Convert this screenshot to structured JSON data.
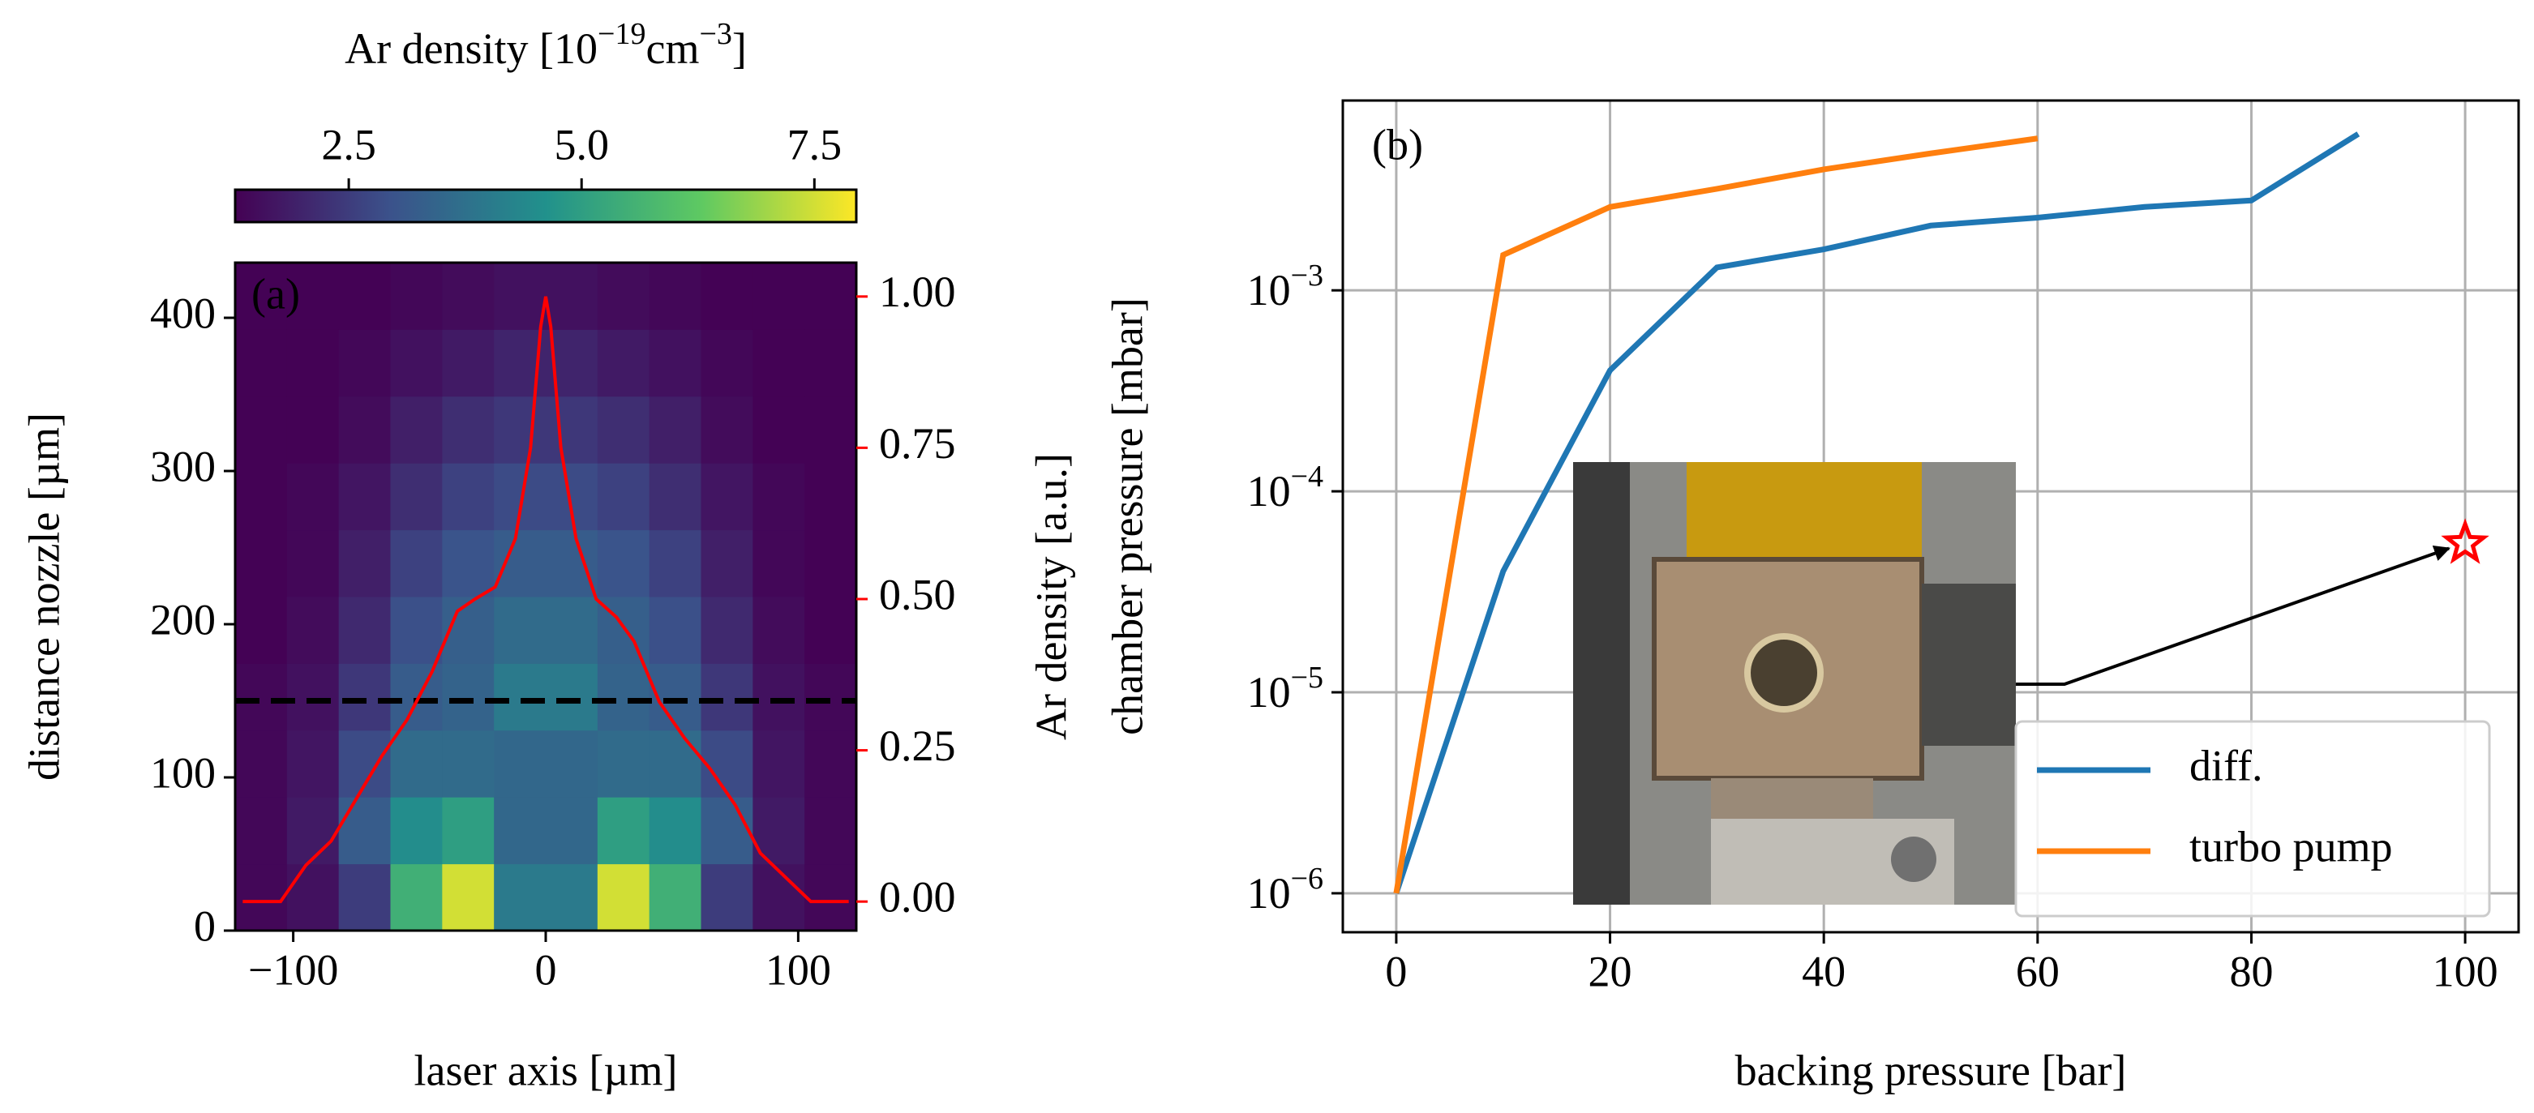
{
  "chart_data": [
    {
      "type": "heatmap",
      "label": "(a)",
      "xlabel": "laser axis [µm]",
      "ylabel": "distance nozzle [µm]",
      "y2label": "Ar density [a.u.]",
      "colorbar_label": "Ar density [10−19cm−3]",
      "colormap": "viridis",
      "clim": [
        1.28,
        7.95
      ],
      "cticks": [
        2.5,
        {
          "value": 5.0,
          "label": "5.0"
        },
        7.5
      ],
      "xlim": [
        -123,
        123
      ],
      "ylim": [
        0,
        436
      ],
      "y2lim": [
        -0.048,
        1.056
      ],
      "xticks": [
        {
          "value": -100,
          "label": "−100"
        },
        0,
        100
      ],
      "yticks": [
        0,
        100,
        200,
        300,
        400
      ],
      "y2ticks": [
        {
          "value": 0,
          "label": "0.00"
        },
        {
          "value": 0.25,
          "label": "0.25"
        },
        {
          "value": 0.5,
          "label": "0.50"
        },
        {
          "value": 0.75,
          "label": "0.75"
        },
        {
          "value": 1,
          "label": "1.00"
        }
      ],
      "x": [
        -112.75,
        -92.25,
        -71.75,
        -51.25,
        -30.75,
        -10.25,
        10.25,
        30.75,
        51.25,
        71.75,
        92.25,
        112.75
      ],
      "y": [
        21.8,
        65.4,
        109,
        152.6,
        196.2,
        239.8,
        283.4,
        327,
        370.6,
        414.2
      ],
      "z": [
        [
          1.4,
          1.6,
          2.5,
          5.5,
          7.5,
          4.0,
          4.0,
          7.5,
          5.5,
          2.5,
          1.6,
          1.4
        ],
        [
          1.4,
          1.8,
          3.2,
          4.5,
          5.0,
          3.5,
          3.5,
          5.0,
          4.5,
          3.2,
          1.8,
          1.4
        ],
        [
          1.4,
          1.7,
          2.8,
          3.6,
          3.6,
          3.5,
          3.5,
          3.6,
          3.6,
          2.8,
          1.7,
          1.4
        ],
        [
          1.4,
          1.6,
          2.4,
          3.2,
          3.4,
          4.0,
          4.0,
          3.4,
          3.2,
          2.4,
          1.6,
          1.4
        ],
        [
          1.3,
          1.5,
          2.1,
          2.9,
          3.3,
          3.6,
          3.6,
          3.3,
          2.9,
          2.1,
          1.5,
          1.3
        ],
        [
          1.3,
          1.4,
          1.9,
          2.6,
          3.0,
          3.2,
          3.2,
          3.0,
          2.6,
          1.9,
          1.4,
          1.3
        ],
        [
          1.3,
          1.4,
          1.7,
          2.2,
          2.6,
          2.8,
          2.8,
          2.6,
          2.2,
          1.7,
          1.4,
          1.3
        ],
        [
          1.3,
          1.3,
          1.5,
          1.9,
          2.2,
          2.4,
          2.4,
          2.2,
          1.9,
          1.5,
          1.3,
          1.3
        ],
        [
          1.3,
          1.3,
          1.4,
          1.6,
          1.8,
          2.0,
          2.0,
          1.8,
          1.6,
          1.4,
          1.3,
          1.3
        ],
        [
          1.3,
          1.3,
          1.3,
          1.4,
          1.5,
          1.6,
          1.6,
          1.5,
          1.4,
          1.3,
          1.3,
          1.3
        ]
      ],
      "cut": 150,
      "profile": {
        "color": "#ff0000",
        "axis": "y2",
        "x": [
          -120,
          -105,
          -95,
          -85,
          -75,
          -65,
          -55,
          -45,
          -35,
          -28,
          -20,
          -12,
          -6,
          -2,
          0,
          2,
          6,
          12,
          20,
          28,
          35,
          45,
          55,
          65,
          75,
          85,
          95,
          105,
          120
        ],
        "values": [
          0.0,
          0.0,
          0.06,
          0.1,
          0.17,
          0.24,
          0.3,
          0.38,
          0.48,
          0.5,
          0.52,
          0.6,
          0.75,
          0.95,
          1.0,
          0.95,
          0.75,
          0.6,
          0.5,
          0.47,
          0.43,
          0.33,
          0.27,
          0.22,
          0.16,
          0.08,
          0.04,
          0.0,
          0.0
        ]
      }
    },
    {
      "type": "line",
      "label": "(b)",
      "log_y": true,
      "grid": true,
      "legend": "lower right",
      "xlabel": "backing pressure [bar]",
      "ylabel": "chamber pressure [mbar]",
      "xlim": [
        -5,
        105
      ],
      "ylim": [
        6.4e-07,
        0.0088
      ],
      "xticks": [
        0,
        20,
        40,
        60,
        80,
        100
      ],
      "yticks": [
        {
          "value": 1e-06,
          "label": "10−6"
        },
        {
          "value": 1e-05,
          "label": "10−5"
        },
        {
          "value": 0.0001,
          "label": "10−4"
        },
        {
          "value": 0.001,
          "label": "10−3"
        }
      ],
      "series": [
        {
          "name": "diff.",
          "color": "#1f77b4",
          "x": [
            0,
            10,
            20,
            30,
            40,
            50,
            60,
            70,
            80,
            90
          ],
          "values": [
            1e-06,
            4e-05,
            0.0004,
            0.0013,
            0.0016,
            0.0021,
            0.0023,
            0.0026,
            0.0028,
            0.006
          ]
        },
        {
          "name": "turbo pump",
          "color": "#ff7f0e",
          "x": [
            0,
            10,
            20,
            30,
            40,
            50,
            60
          ],
          "values": [
            1e-06,
            0.0015,
            0.0026,
            0.0032,
            0.004,
            0.0048,
            0.0057
          ]
        }
      ],
      "point": {
        "x": 100,
        "y": 5.5e-05,
        "color": "#ff0000"
      }
    }
  ]
}
